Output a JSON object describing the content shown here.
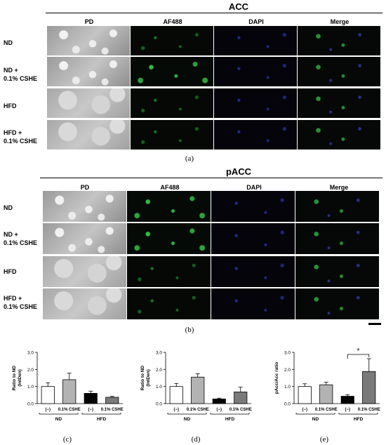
{
  "panels": [
    {
      "title": "ACC",
      "columns": [
        "PD",
        "AF488",
        "DAPI",
        "Merge"
      ],
      "rows": [
        "ND",
        "ND +\n0.1% CSHE",
        "HFD",
        "HFD +\n0.1% CSHE"
      ],
      "letter": "(a)"
    },
    {
      "title": "pACC",
      "columns": [
        "PD",
        "AF488",
        "DAPI",
        "Merge"
      ],
      "rows": [
        "ND",
        "ND +\n0.1% CSHE",
        "HFD",
        "HFD +\n0.1% CSHE"
      ],
      "letter": "(b)"
    }
  ],
  "chart_data": [
    {
      "type": "bar",
      "letter": "(c)",
      "ylabel": "Ratio to ND\n(IntDen)",
      "ylim": [
        0,
        3
      ],
      "yticks": [
        "0.0",
        "1.0",
        "2.0",
        "3.0"
      ],
      "categories": [
        "(−)",
        "0.1% CSHE",
        "(−)",
        "0.1% CSHE"
      ],
      "groups": [
        "ND",
        "HFD"
      ],
      "values": [
        1.0,
        1.4,
        0.6,
        0.37
      ],
      "errors": [
        0.22,
        0.38,
        0.13,
        0.05
      ],
      "colors": [
        "#ffffff",
        "#b3b3b3",
        "#000000",
        "#7a7a7a"
      ],
      "significance": []
    },
    {
      "type": "bar",
      "letter": "(d)",
      "ylabel": "Ratio to ND\n(IntDen)",
      "ylim": [
        0,
        3
      ],
      "yticks": [
        "0.0",
        "1.0",
        "2.0",
        "3.0"
      ],
      "categories": [
        "(−)",
        "0.1% CSHE",
        "(−)",
        "0.1% CSHE"
      ],
      "groups": [
        "ND",
        "HFD"
      ],
      "values": [
        1.0,
        1.55,
        0.27,
        0.68
      ],
      "errors": [
        0.18,
        0.2,
        0.05,
        0.28
      ],
      "colors": [
        "#ffffff",
        "#b3b3b3",
        "#000000",
        "#7a7a7a"
      ],
      "significance": []
    },
    {
      "type": "bar",
      "letter": "(e)",
      "ylabel": "pAcc/Acc ratio",
      "ylim": [
        0,
        3
      ],
      "yticks": [
        "0.0",
        "1.0",
        "2.0",
        "3.0"
      ],
      "categories": [
        "(−)",
        "0.1% CSHE",
        "(−)",
        "0.1% CSHE"
      ],
      "groups": [
        "ND",
        "HFD"
      ],
      "values": [
        1.0,
        1.1,
        0.43,
        1.88
      ],
      "errors": [
        0.16,
        0.15,
        0.09,
        0.75
      ],
      "colors": [
        "#ffffff",
        "#b3b3b3",
        "#000000",
        "#7a7a7a"
      ],
      "significance": [
        {
          "from": 2,
          "to": 3,
          "label": "*"
        }
      ]
    }
  ]
}
